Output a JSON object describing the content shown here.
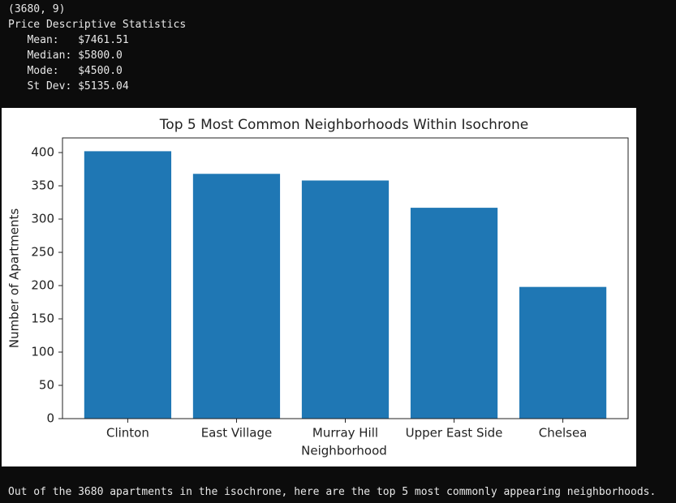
{
  "output_lines": [
    "(3680, 9)",
    "Price Descriptive Statistics",
    "   Mean:   $7461.51",
    "   Median: $5800.0",
    "   Mode:   $4500.0",
    "   St Dev: $5135.04"
  ],
  "chart_data": {
    "type": "bar",
    "title": "Top 5 Most Common Neighborhoods Within Isochrone",
    "x_label": "Neighborhood",
    "y_label": "Number of Apartments",
    "categories": [
      "Clinton",
      "East Village",
      "Murray Hill",
      "Upper East Side",
      "Chelsea"
    ],
    "values": [
      402,
      368,
      358,
      317,
      198
    ],
    "color": "#1f77b4",
    "ylim": [
      0,
      422
    ],
    "yticks": [
      0,
      50,
      100,
      150,
      200,
      250,
      300,
      350,
      400
    ],
    "grid": false
  },
  "footer": "Out of the 3680 apartments in the isochrone, here are the top 5 most commonly appearing neighborhoods."
}
